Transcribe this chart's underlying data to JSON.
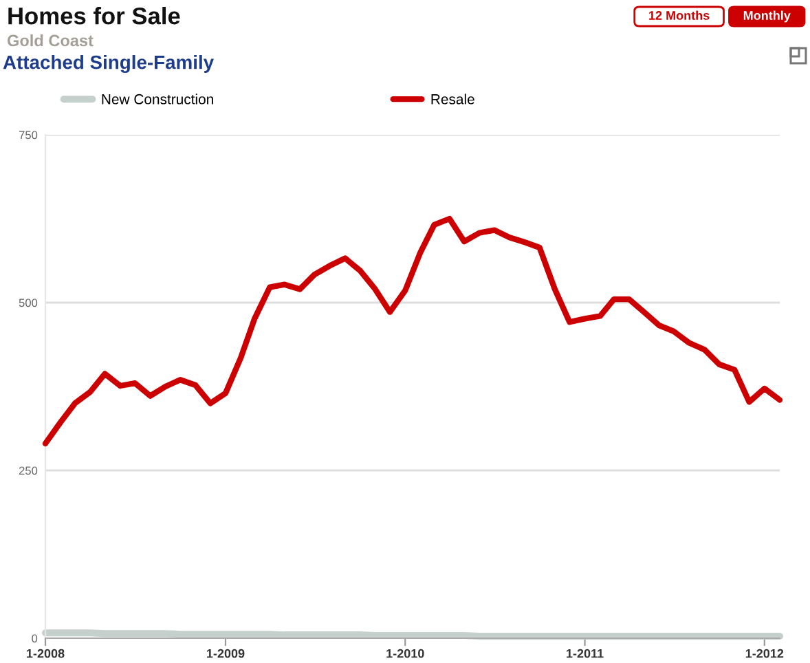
{
  "chart_data": {
    "type": "line",
    "title": "Homes for Sale",
    "subtitle": "Gold Coast",
    "annotations": [
      "Attached Single-Family",
      "12 Months",
      "Monthly"
    ],
    "x": [
      "2008-01",
      "2008-02",
      "2008-03",
      "2008-04",
      "2008-05",
      "2008-06",
      "2008-07",
      "2008-08",
      "2008-09",
      "2008-10",
      "2008-11",
      "2008-12",
      "2009-01",
      "2009-02",
      "2009-03",
      "2009-04",
      "2009-05",
      "2009-06",
      "2009-07",
      "2009-08",
      "2009-09",
      "2009-10",
      "2009-11",
      "2009-12",
      "2010-01",
      "2010-02",
      "2010-03",
      "2010-04",
      "2010-05",
      "2010-06",
      "2010-07",
      "2010-08",
      "2010-09",
      "2010-10",
      "2010-11",
      "2010-12",
      "2011-01",
      "2011-02",
      "2011-03",
      "2011-04",
      "2011-05",
      "2011-06",
      "2011-07",
      "2011-08",
      "2011-09",
      "2011-10",
      "2011-11",
      "2011-12",
      "2012-01",
      "2012-02"
    ],
    "series": [
      {
        "name": "New Construction",
        "color": "#c5d0cc",
        "values": [
          8,
          8,
          8,
          8,
          7,
          7,
          7,
          7,
          7,
          6,
          6,
          6,
          6,
          6,
          6,
          6,
          5,
          5,
          5,
          5,
          5,
          5,
          4,
          4,
          4,
          4,
          4,
          4,
          4,
          3,
          3,
          3,
          3,
          3,
          3,
          3,
          3,
          3,
          3,
          3,
          3,
          3,
          3,
          3,
          3,
          3,
          3,
          3,
          3,
          3
        ]
      },
      {
        "name": "Resale",
        "color": "#cc0000",
        "values": [
          290,
          322,
          350,
          367,
          394,
          376,
          380,
          361,
          375,
          385,
          377,
          350,
          365,
          418,
          476,
          523,
          527,
          520,
          542,
          555,
          566,
          548,
          520,
          486,
          518,
          575,
          616,
          625,
          591,
          604,
          608,
          597,
          590,
          582,
          520,
          471,
          476,
          480,
          505,
          505,
          486,
          466,
          457,
          440,
          430,
          408,
          400,
          352,
          372,
          355
        ]
      }
    ],
    "xlim": [
      "2008-01",
      "2012-02"
    ],
    "ylim": [
      0,
      750
    ],
    "xticks": [
      {
        "value": "2008-01",
        "label": "1-2008"
      },
      {
        "value": "2009-01",
        "label": "1-2009"
      },
      {
        "value": "2010-01",
        "label": "1-2010"
      },
      {
        "value": "2011-01",
        "label": "1-2011"
      },
      {
        "value": "2012-01",
        "label": "1-2012"
      }
    ],
    "yticks": [
      0,
      250,
      500,
      750
    ],
    "grid": "y",
    "legend": "top"
  }
}
